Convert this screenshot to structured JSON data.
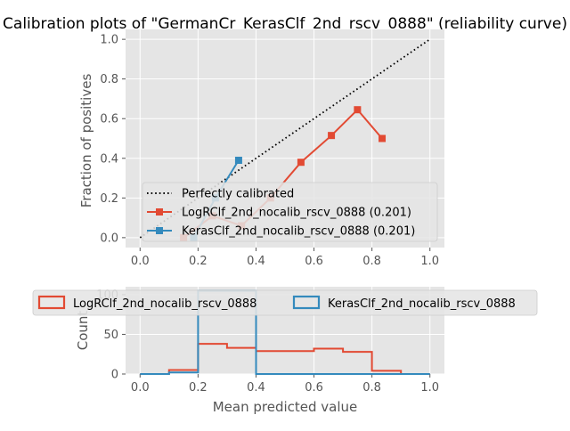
{
  "chart_data": [
    {
      "type": "line",
      "title": "Calibration plots of \"GermanCr_KerasClf_2nd_rscv_0888\" (reliability curve)",
      "xlabel": "",
      "ylabel": "Fraction of positives",
      "xlim": [
        -0.05,
        1.05
      ],
      "ylim": [
        -0.05,
        1.05
      ],
      "xticks": [
        "0.0",
        "0.2",
        "0.4",
        "0.6",
        "0.8",
        "1.0"
      ],
      "yticks": [
        "0.0",
        "0.2",
        "0.4",
        "0.6",
        "0.8",
        "1.0"
      ],
      "grid": true,
      "legend_position": "lower-right",
      "series": [
        {
          "name": "Perfectly calibrated",
          "color": "#000000",
          "style": "dotted",
          "x": [
            0,
            1
          ],
          "y": [
            0,
            1
          ]
        },
        {
          "name": "LogRClf_2nd_nocalib_rscv_0888 (0.201)",
          "color": "#E24A33",
          "marker": "square",
          "x": [
            0.15,
            0.25,
            0.35,
            0.45,
            0.555,
            0.66,
            0.75,
            0.835
          ],
          "y": [
            0.0,
            0.11,
            0.06,
            0.2,
            0.38,
            0.515,
            0.645,
            0.5
          ]
        },
        {
          "name": "KerasClf_2nd_nocalib_rscv_0888 (0.201)",
          "color": "#348ABD",
          "marker": "square",
          "x": [
            0.185,
            0.26,
            0.34
          ],
          "y": [
            0.0,
            0.2,
            0.39
          ]
        }
      ]
    },
    {
      "type": "bar",
      "title": "",
      "xlabel": "Mean predicted value",
      "ylabel": "Count",
      "xlim": [
        -0.05,
        1.05
      ],
      "ylim": [
        0,
        110
      ],
      "xticks": [
        "0.0",
        "0.2",
        "0.4",
        "0.6",
        "0.8",
        "1.0"
      ],
      "yticks": [
        "0",
        "50",
        "100"
      ],
      "grid": true,
      "legend_position": "upper-center",
      "bin_edges": [
        0.0,
        0.1,
        0.2,
        0.3,
        0.4,
        0.5,
        0.6,
        0.7,
        0.8,
        0.9,
        1.0
      ],
      "series": [
        {
          "name": "LogRClf_2nd_nocalib_rscv_0888",
          "color": "#E24A33",
          "values": [
            0,
            5,
            38,
            33,
            29,
            29,
            32,
            28,
            4,
            0
          ]
        },
        {
          "name": "KerasClf_2nd_nocalib_rscv_0888",
          "color": "#348ABD",
          "values": [
            0,
            2,
            105,
            105,
            0,
            0,
            0,
            0,
            0,
            0
          ]
        }
      ]
    }
  ]
}
